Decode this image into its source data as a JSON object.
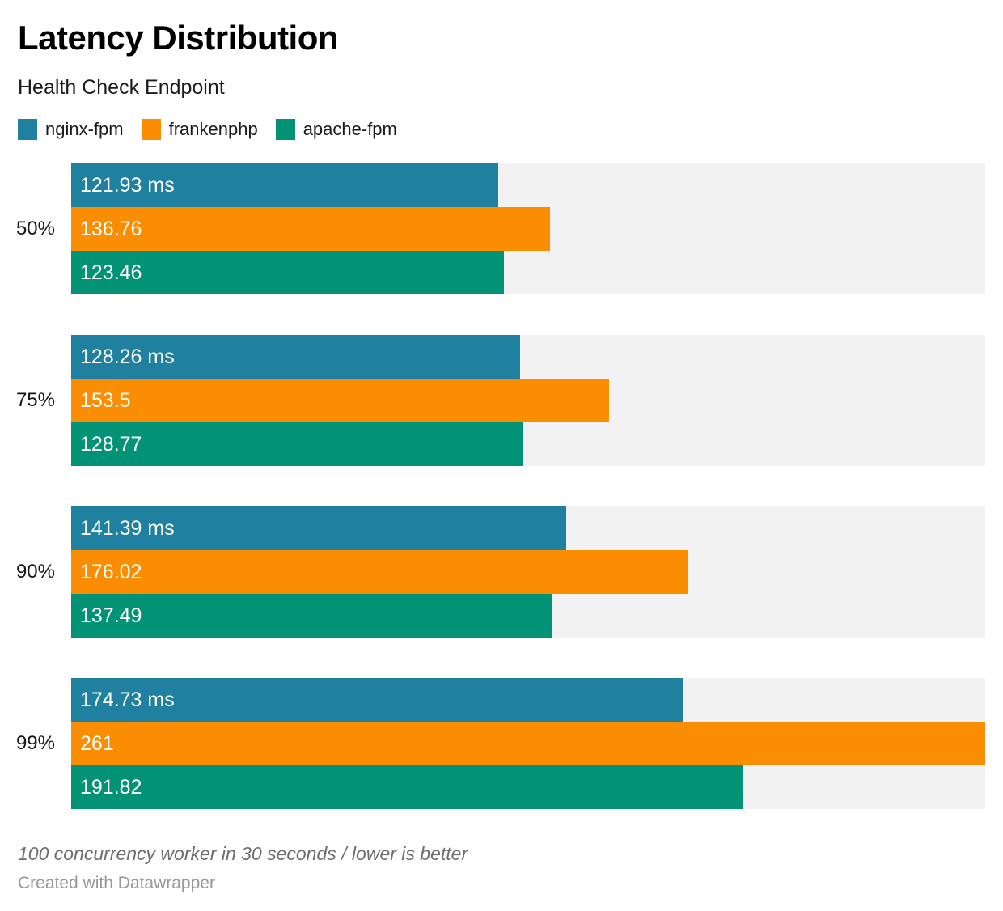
{
  "header": {
    "title": "Latency Distribution",
    "subtitle": "Health Check Endpoint"
  },
  "chart_data": {
    "type": "bar",
    "orientation": "horizontal",
    "title": "Latency Distribution",
    "subtitle": "Health Check Endpoint",
    "categories": [
      "50%",
      "75%",
      "90%",
      "99%"
    ],
    "series": [
      {
        "name": "nginx-fpm",
        "color": "#2080a0",
        "values": [
          121.93,
          128.26,
          141.39,
          174.73
        ],
        "bar_labels": [
          "121.93 ms",
          "128.26 ms",
          "141.39 ms",
          "174.73 ms"
        ]
      },
      {
        "name": "frankenphp",
        "color": "#fa8d02",
        "values": [
          136.76,
          153.5,
          176.02,
          261
        ],
        "bar_labels": [
          "136.76",
          "153.5",
          "176.02",
          "261"
        ]
      },
      {
        "name": "apache-fpm",
        "color": "#029275",
        "values": [
          123.46,
          128.77,
          137.49,
          191.82
        ],
        "bar_labels": [
          "123.46",
          "128.77",
          "137.49",
          "191.82"
        ]
      }
    ],
    "xlabel": "",
    "ylabel": "",
    "xlim": [
      0,
      261
    ],
    "grid": false,
    "legend_position": "top",
    "track_color": "#f2f2f2",
    "value_label_position": "inside-start"
  },
  "footer": {
    "note": "100 concurrency worker in 30 seconds / lower is better",
    "credit": "Created with Datawrapper"
  }
}
